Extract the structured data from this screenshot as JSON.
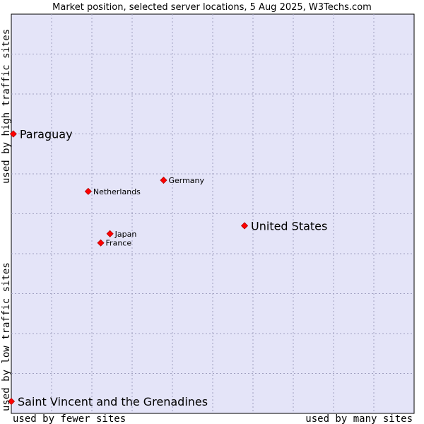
{
  "chart_data": {
    "type": "scatter",
    "title": "Market position, selected server locations, 5 Aug 2025, W3Techs.com",
    "xlabel_left": "used by fewer sites",
    "xlabel_right": "used by many sites",
    "ylabel_bottom": "used by low traffic sites",
    "ylabel_top": "used by high traffic sites",
    "xlim": [
      0,
      100
    ],
    "ylim": [
      0,
      100
    ],
    "grid": true,
    "marker_color": "#ff0000",
    "plot_background": "#e4e4f8",
    "grid_color": "#a0a0c0",
    "points": [
      {
        "label": "Paraguay",
        "x": 0.5,
        "y": 70.0,
        "size": "large"
      },
      {
        "label": "Germany",
        "x": 37.8,
        "y": 58.4,
        "size": "small"
      },
      {
        "label": "Netherlands",
        "x": 19.1,
        "y": 55.6,
        "size": "small"
      },
      {
        "label": "United States",
        "x": 57.9,
        "y": 47.0,
        "size": "large"
      },
      {
        "label": "Japan",
        "x": 24.5,
        "y": 45.0,
        "size": "small"
      },
      {
        "label": "France",
        "x": 22.2,
        "y": 42.7,
        "size": "small"
      },
      {
        "label": "Saint Vincent and the Grenadines",
        "x": 0.0,
        "y": 3.0,
        "size": "large"
      }
    ]
  }
}
